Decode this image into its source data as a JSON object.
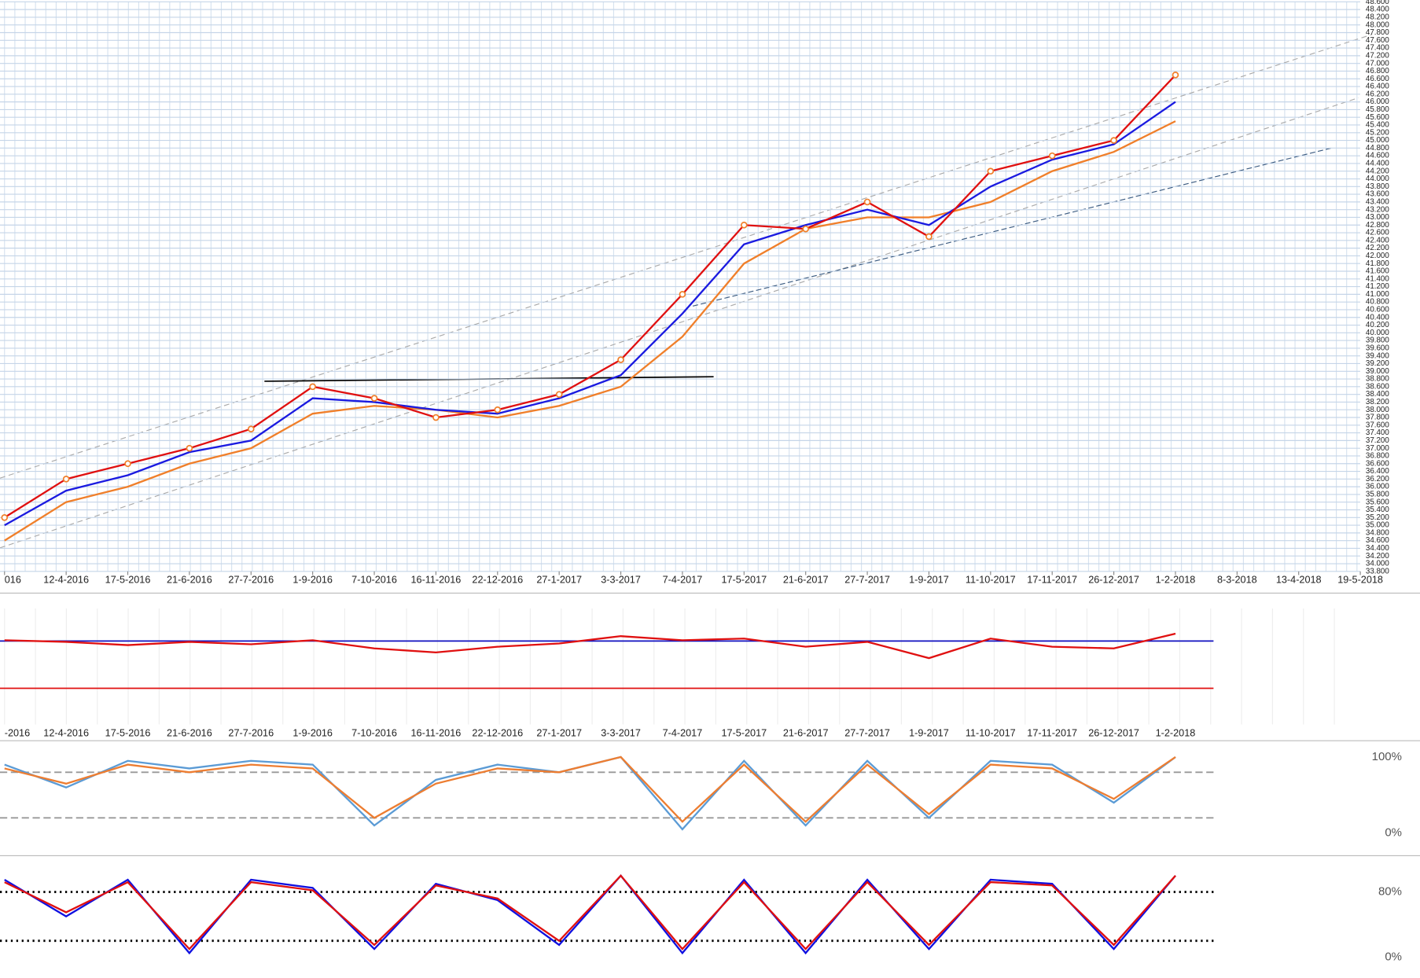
{
  "chart_data": [
    {
      "type": "line",
      "categories": [
        "016",
        "12-4-2016",
        "17-5-2016",
        "21-6-2016",
        "27-7-2016",
        "1-9-2016",
        "7-10-2016",
        "16-11-2016",
        "22-12-2016",
        "27-1-2017",
        "3-3-2017",
        "7-4-2017",
        "17-5-2017",
        "21-6-2017",
        "27-7-2017",
        "1-9-2017",
        "11-10-2017",
        "17-11-2017",
        "26-12-2017",
        "1-2-2018",
        "8-3-2018",
        "13-4-2018",
        "19-5-2018"
      ],
      "ylim": [
        33.8,
        48.6
      ],
      "yticks": [
        {
          "value": 33.8,
          "label": "33.800"
        },
        {
          "value": 34.0,
          "label": "34.000"
        },
        {
          "value": 34.2,
          "label": "34.200"
        },
        {
          "value": 34.4,
          "label": "34.400"
        },
        {
          "value": 34.6,
          "label": "34.600"
        },
        {
          "value": 34.8,
          "label": "34.800"
        },
        {
          "value": 35.0,
          "label": "35.000"
        },
        {
          "value": 35.2,
          "label": "35.200"
        },
        {
          "value": 35.4,
          "label": "35.400"
        },
        {
          "value": 35.6,
          "label": "35.600"
        },
        {
          "value": 35.8,
          "label": "35.800"
        },
        {
          "value": 36.0,
          "label": "36.000"
        },
        {
          "value": 36.2,
          "label": "36.200"
        },
        {
          "value": 36.4,
          "label": "36.400"
        },
        {
          "value": 36.6,
          "label": "36.600"
        },
        {
          "value": 36.8,
          "label": "36.800"
        },
        {
          "value": 37.0,
          "label": "37.000"
        },
        {
          "value": 37.2,
          "label": "37.200"
        },
        {
          "value": 37.4,
          "label": "37.400"
        },
        {
          "value": 37.6,
          "label": "37.600"
        },
        {
          "value": 37.8,
          "label": "37.800"
        },
        {
          "value": 38.0,
          "label": "38.000"
        },
        {
          "value": 38.2,
          "label": "38.200"
        },
        {
          "value": 38.4,
          "label": "38.400"
        },
        {
          "value": 38.6,
          "label": "38.600"
        },
        {
          "value": 38.8,
          "label": "38.800"
        },
        {
          "value": 39.0,
          "label": "39.000"
        },
        {
          "value": 39.2,
          "label": "39.200"
        },
        {
          "value": 39.4,
          "label": "39.400"
        },
        {
          "value": 39.6,
          "label": "39.600"
        },
        {
          "value": 39.8,
          "label": "39.800"
        },
        {
          "value": 40.0,
          "label": "40.000"
        },
        {
          "value": 40.2,
          "label": "40.200"
        },
        {
          "value": 40.4,
          "label": "40.400"
        },
        {
          "value": 40.6,
          "label": "40.600"
        },
        {
          "value": 40.8,
          "label": "40.800"
        },
        {
          "value": 41.0,
          "label": "41.000"
        },
        {
          "value": 41.2,
          "label": "41.200"
        },
        {
          "value": 41.4,
          "label": "41.400"
        },
        {
          "value": 41.6,
          "label": "41.600"
        },
        {
          "value": 41.8,
          "label": "41.800"
        },
        {
          "value": 42.0,
          "label": "42.000"
        },
        {
          "value": 42.2,
          "label": "42.200"
        },
        {
          "value": 42.4,
          "label": "42.400"
        },
        {
          "value": 42.6,
          "label": "42.600"
        },
        {
          "value": 42.8,
          "label": "42.800"
        },
        {
          "value": 43.0,
          "label": "43.000"
        },
        {
          "value": 43.2,
          "label": "43.200"
        },
        {
          "value": 43.4,
          "label": "43.400"
        },
        {
          "value": 43.6,
          "label": "43.600"
        },
        {
          "value": 43.8,
          "label": "43.800"
        },
        {
          "value": 44.0,
          "label": "44.000"
        },
        {
          "value": 44.2,
          "label": "44.200"
        },
        {
          "value": 44.4,
          "label": "44.400"
        },
        {
          "value": 44.6,
          "label": "44.600"
        },
        {
          "value": 44.8,
          "label": "44.800"
        },
        {
          "value": 45.0,
          "label": "45.000"
        },
        {
          "value": 45.2,
          "label": "45.200"
        },
        {
          "value": 45.4,
          "label": "45.400"
        },
        {
          "value": 45.6,
          "label": "45.600"
        },
        {
          "value": 45.8,
          "label": "45.800"
        },
        {
          "value": 46.0,
          "label": "46.000"
        },
        {
          "value": 46.2,
          "label": "46.200"
        },
        {
          "value": 46.4,
          "label": "46.400"
        },
        {
          "value": 46.6,
          "label": "46.600"
        },
        {
          "value": 46.8,
          "label": "46.800"
        },
        {
          "value": 47.0,
          "label": "47.000"
        },
        {
          "value": 47.2,
          "label": "47.200"
        },
        {
          "value": 47.4,
          "label": "47.400"
        },
        {
          "value": 47.6,
          "label": "47.600"
        },
        {
          "value": 47.8,
          "label": "47.800"
        },
        {
          "value": 48.0,
          "label": "48.000"
        },
        {
          "value": 48.2,
          "label": "48.200"
        },
        {
          "value": 48.4,
          "label": "48.400"
        },
        {
          "value": 48.6,
          "label": "48.600"
        }
      ],
      "grid": true,
      "series": [
        {
          "color": "#f07f2a",
          "values": [
            34.6,
            35.6,
            36.0,
            36.6,
            37.0,
            37.9,
            38.1,
            38.0,
            37.8,
            38.1,
            38.6,
            39.9,
            41.8,
            42.7,
            43.0,
            43.0,
            43.4,
            44.2,
            44.7,
            45.5,
            null,
            null,
            null
          ]
        },
        {
          "color": "#1a1ae0",
          "values": [
            35.0,
            35.9,
            36.3,
            36.9,
            37.2,
            38.3,
            38.2,
            38.0,
            37.9,
            38.3,
            38.9,
            40.5,
            42.3,
            42.8,
            43.2,
            42.8,
            43.8,
            44.5,
            44.9,
            46.0,
            null,
            null,
            null
          ]
        },
        {
          "color": "#e01010",
          "markers": true,
          "values": [
            35.2,
            36.2,
            36.6,
            37.0,
            37.5,
            38.6,
            38.3,
            37.8,
            38.0,
            38.4,
            39.3,
            41.0,
            42.8,
            42.7,
            43.4,
            42.5,
            44.2,
            44.6,
            45.0,
            46.7,
            null,
            null,
            null
          ]
        }
      ]
    },
    {
      "type": "line",
      "categories": [
        "-2016",
        "12-4-2016",
        "17-5-2016",
        "21-6-2016",
        "27-7-2016",
        "1-9-2016",
        "7-10-2016",
        "16-11-2016",
        "22-12-2016",
        "27-1-2017",
        "3-3-2017",
        "7-4-2017",
        "17-5-2017",
        "21-6-2017",
        "27-7-2017",
        "1-9-2017",
        "11-10-2017",
        "17-11-2017",
        "26-12-2017",
        "1-2-2018"
      ],
      "ylim": [
        0,
        100
      ],
      "hlines": [
        {
          "value": 69,
          "color": "#1010c0"
        },
        {
          "value": 11,
          "color": "#e01010"
        }
      ],
      "series": [
        {
          "color": "#e01010",
          "values": [
            70,
            68,
            64,
            68,
            65,
            70,
            60,
            55,
            62,
            66,
            75,
            70,
            72,
            62,
            68,
            48,
            72,
            62,
            60,
            78
          ]
        }
      ]
    },
    {
      "type": "line",
      "ylim": [
        0,
        100
      ],
      "yticks": [
        {
          "value": 0,
          "label": "0%"
        },
        {
          "value": 100,
          "label": "100%"
        }
      ],
      "hlines": [
        {
          "value": 80,
          "color": "#999999"
        },
        {
          "value": 20,
          "color": "#999999"
        }
      ],
      "series": [
        {
          "color": "#5b9bd5",
          "values": [
            90,
            60,
            95,
            85,
            95,
            90,
            10,
            70,
            90,
            80,
            100,
            5,
            95,
            10,
            95,
            20,
            95,
            90,
            40,
            100
          ]
        },
        {
          "color": "#ed7d31",
          "values": [
            85,
            65,
            90,
            80,
            90,
            85,
            20,
            65,
            85,
            80,
            100,
            15,
            90,
            15,
            90,
            25,
            90,
            85,
            45,
            100
          ]
        }
      ]
    },
    {
      "type": "line",
      "ylim": [
        0,
        100
      ],
      "yticks": [
        {
          "value": 0,
          "label": "0%"
        },
        {
          "value": 80,
          "label": "80%"
        }
      ],
      "hlines": [
        {
          "value": 80,
          "color": "#000000"
        },
        {
          "value": 20,
          "color": "#000000"
        }
      ],
      "series": [
        {
          "color": "#1010e0",
          "values": [
            95,
            50,
            95,
            5,
            95,
            85,
            10,
            90,
            70,
            15,
            100,
            5,
            95,
            5,
            95,
            10,
            95,
            90,
            10,
            100
          ]
        },
        {
          "color": "#e01010",
          "values": [
            92,
            55,
            92,
            10,
            92,
            82,
            15,
            88,
            72,
            20,
            100,
            10,
            92,
            10,
            92,
            15,
            92,
            88,
            15,
            100
          ]
        }
      ]
    }
  ]
}
